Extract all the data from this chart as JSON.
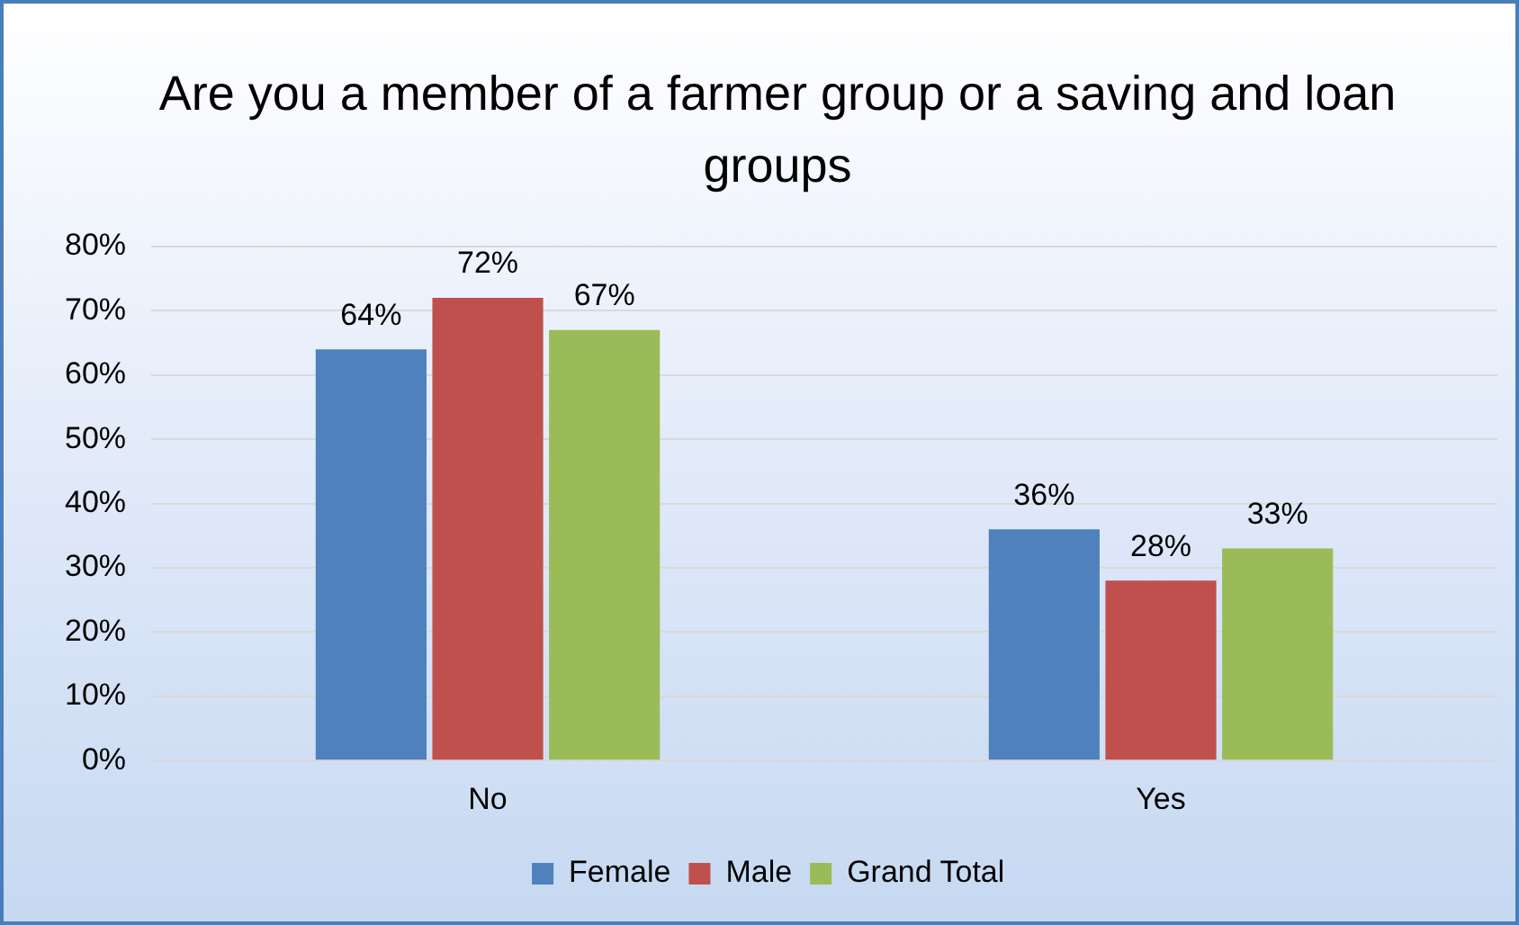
{
  "chart_data": {
    "type": "bar",
    "title": "Are you a member of a farmer group or a saving and loan groups",
    "categories": [
      "No",
      "Yes"
    ],
    "series": [
      {
        "name": "Female",
        "color": "#4f81bd",
        "values": [
          64,
          36
        ],
        "value_labels": [
          "64%",
          "36%"
        ]
      },
      {
        "name": "Male",
        "color": "#c0504d",
        "values": [
          72,
          28
        ],
        "value_labels": [
          "72%",
          "28%"
        ]
      },
      {
        "name": "Grand Total",
        "color": "#9bbb59",
        "values": [
          67,
          33
        ],
        "value_labels": [
          "67%",
          "33%"
        ]
      }
    ],
    "ylim": [
      0,
      80
    ],
    "yticks": [
      {
        "value": 0,
        "label": "0%"
      },
      {
        "value": 10,
        "label": "10%"
      },
      {
        "value": 20,
        "label": "20%"
      },
      {
        "value": 30,
        "label": "30%"
      },
      {
        "value": 40,
        "label": "40%"
      },
      {
        "value": 50,
        "label": "50%"
      },
      {
        "value": 60,
        "label": "60%"
      },
      {
        "value": 70,
        "label": "70%"
      },
      {
        "value": 80,
        "label": "80%"
      }
    ],
    "grid": "y",
    "legend": "bottom"
  }
}
